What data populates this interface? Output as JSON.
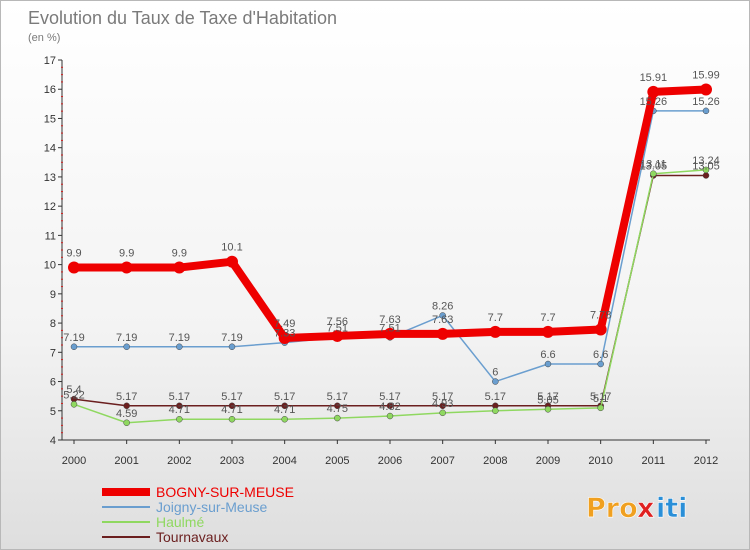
{
  "chart_data": {
    "type": "line",
    "title": "Evolution du Taux de Taxe d'Habitation",
    "subtitle": "(en %)",
    "xlabel": "",
    "ylabel": "",
    "ylim": [
      4,
      17
    ],
    "yticks": [
      4,
      5,
      6,
      7,
      8,
      9,
      10,
      11,
      12,
      13,
      14,
      15,
      16,
      17
    ],
    "categories": [
      "2000",
      "2001",
      "2002",
      "2003",
      "2004",
      "2005",
      "2006",
      "2007",
      "2008",
      "2009",
      "2010",
      "2011",
      "2012"
    ],
    "series": [
      {
        "name": "Tournavaux",
        "color": "#6b1f1f",
        "values": [
          5.4,
          5.17,
          5.17,
          5.17,
          5.17,
          5.17,
          5.17,
          5.17,
          5.17,
          5.17,
          5.17,
          13.05,
          13.05
        ],
        "labels": [
          "5.4",
          "5.17",
          "5.17",
          "5.17",
          "5.17",
          "5.17",
          "5.17",
          "5.17",
          "5.17",
          "5.17",
          "5.17",
          "13.05",
          "13.05"
        ]
      },
      {
        "name": "Haulmé",
        "color": "#8fd860",
        "values": [
          5.22,
          4.59,
          4.71,
          4.71,
          4.71,
          4.75,
          4.82,
          4.93,
          5.0,
          5.05,
          5.1,
          13.11,
          13.24
        ],
        "labels": [
          "5.22",
          "4.59",
          "4.71",
          "4.71",
          "4.71",
          "4.75",
          "4.82",
          "4.93",
          "",
          "5.05",
          "5.1",
          "13.11",
          "13.24"
        ]
      },
      {
        "name": "Joigny-sur-Meuse",
        "color": "#6a9ecf",
        "values": [
          7.19,
          7.19,
          7.19,
          7.19,
          7.33,
          7.51,
          7.51,
          8.26,
          6,
          6.6,
          6.6,
          15.26,
          15.26
        ],
        "labels": [
          "7.19",
          "7.19",
          "7.19",
          "7.19",
          "7.33",
          "7.51",
          "7.51",
          "8.26",
          "6",
          "6.6",
          "6.6",
          "15.26",
          "15.26"
        ]
      },
      {
        "name": "BOGNY-SUR-MEUSE",
        "color": "#ee0000",
        "values": [
          9.9,
          9.9,
          9.9,
          10.1,
          7.49,
          7.56,
          7.63,
          7.63,
          7.7,
          7.7,
          7.78,
          15.91,
          15.99
        ],
        "labels": [
          "9.9",
          "9.9",
          "9.9",
          "10.1",
          "7.49",
          "7.56",
          "7.63",
          "7.63",
          "7.7",
          "7.7",
          "7.78",
          "15.91",
          "15.99"
        ]
      }
    ],
    "legend": {
      "position": "bottom-left",
      "order": [
        "BOGNY-SUR-MEUSE",
        "Joigny-sur-Meuse",
        "Haulmé",
        "Tournavaux"
      ]
    }
  },
  "brand": {
    "prefix": "Pro",
    "mid": "x",
    "suffix": "iti"
  }
}
